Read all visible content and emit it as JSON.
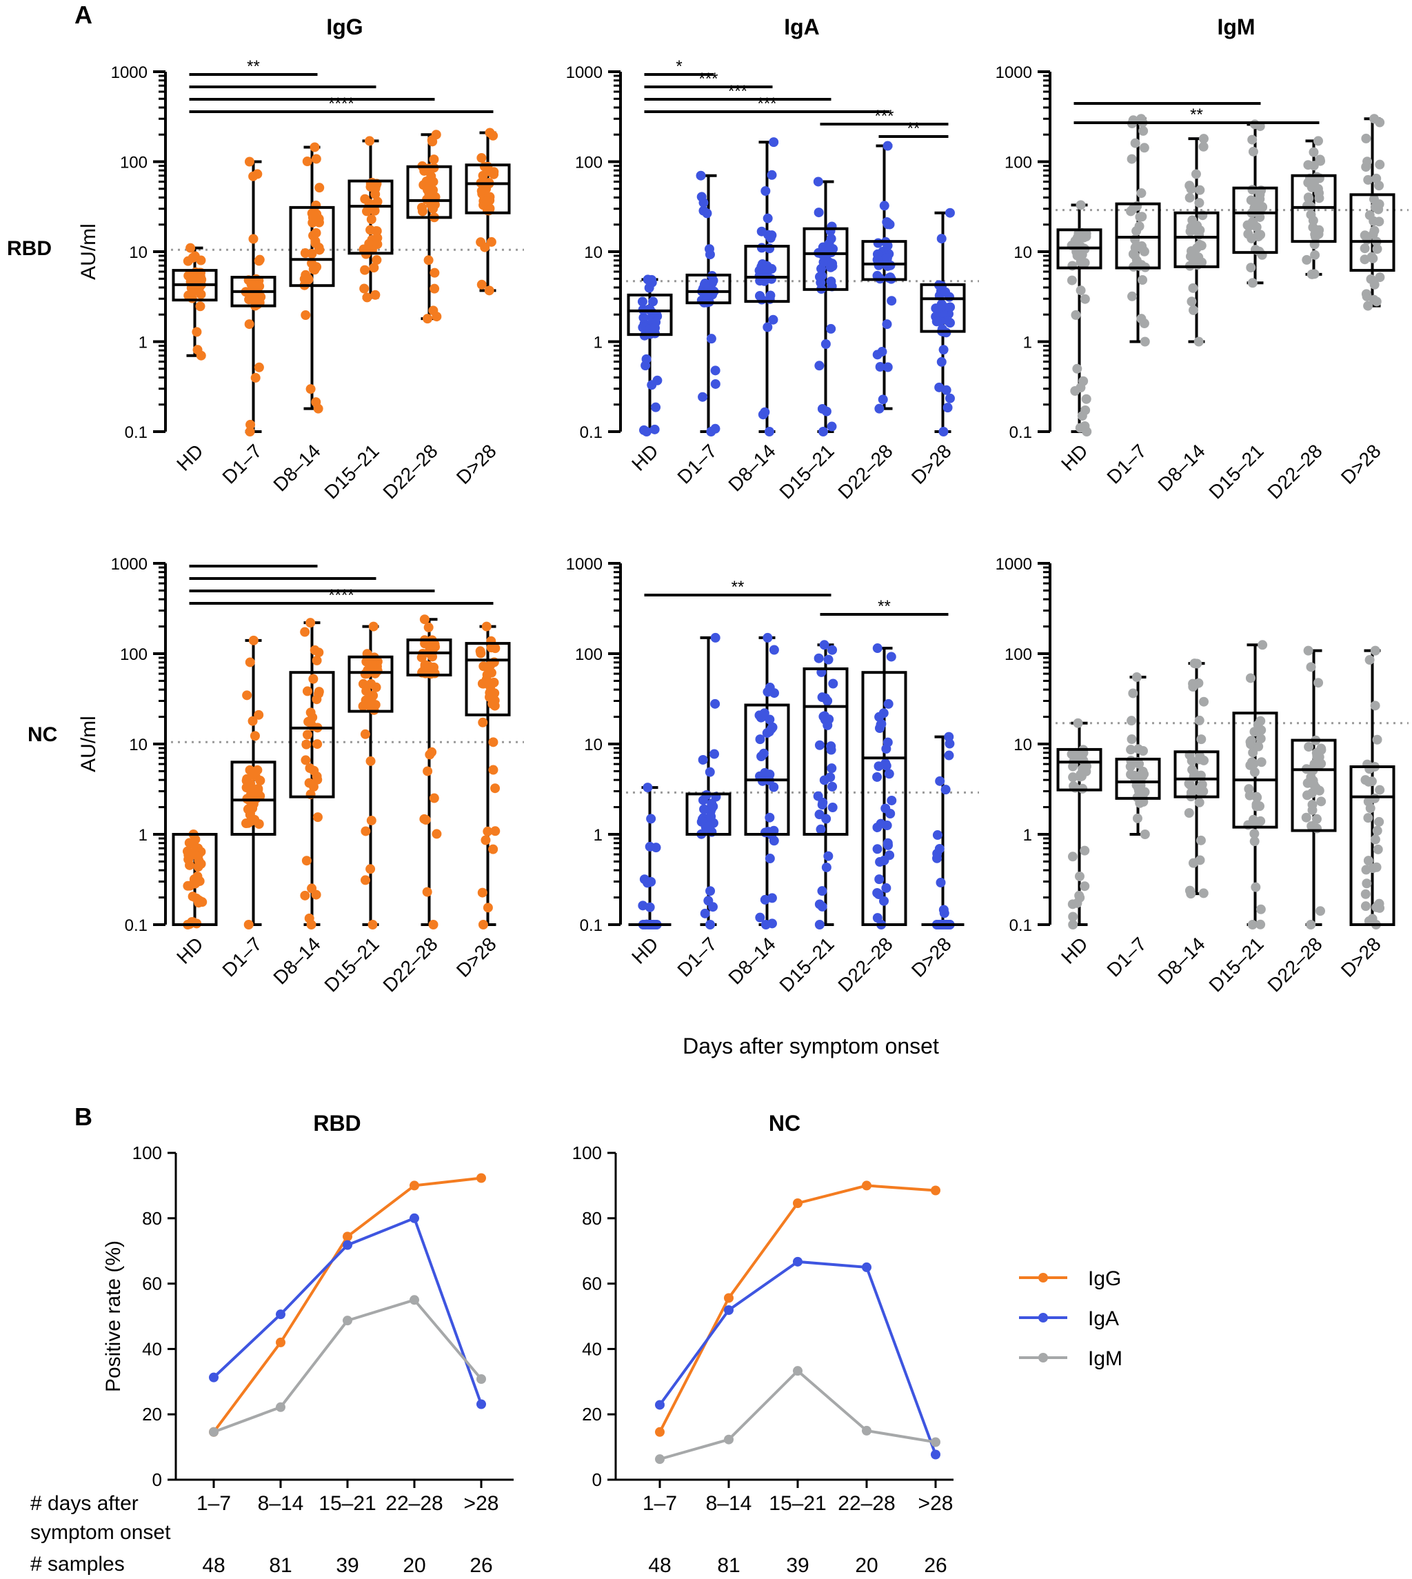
{
  "figure": {
    "panel_a": "A",
    "panel_b": "B",
    "row_labels": [
      "RBD",
      "NC"
    ],
    "shared_xlabel": "Days after symptom onset",
    "colors": {
      "IgG": "#F47C20",
      "IgA": "#3E55E0",
      "IgM": "#A6A8A9"
    }
  },
  "chart_data": [
    {
      "type": "box",
      "scale": "log",
      "title": "IgG",
      "row": "RBD",
      "ylabel": "AU/ml",
      "ylim": [
        0.1,
        1000
      ],
      "yticks": [
        "0.1",
        "1",
        "10",
        "100",
        "1000"
      ],
      "categories": [
        "HD",
        "D1–7",
        "D8–14",
        "D15–21",
        "D22–28",
        "D>28"
      ],
      "cutoff": 10.5,
      "color_key": "IgG",
      "boxes": [
        {
          "min": 0.7,
          "q1": 2.9,
          "med": 4.3,
          "q3": 6.2,
          "max": 11
        },
        {
          "min": 0.1,
          "q1": 2.5,
          "med": 3.6,
          "q3": 5.2,
          "max": 100
        },
        {
          "min": 0.18,
          "q1": 4.2,
          "med": 8.2,
          "q3": 31,
          "max": 145
        },
        {
          "min": 3.1,
          "q1": 9.6,
          "med": 32,
          "q3": 61,
          "max": 170
        },
        {
          "min": 1.8,
          "q1": 24,
          "med": 37,
          "q3": 88,
          "max": 200
        },
        {
          "min": 3.7,
          "q1": 27,
          "med": 57,
          "q3": 92,
          "max": 210
        }
      ],
      "sig": [
        {
          "from": 0,
          "to": 2,
          "label": "**"
        },
        {
          "from": 0,
          "to": 3,
          "label": ""
        },
        {
          "from": 0,
          "to": 4,
          "label": ""
        },
        {
          "from": 0,
          "to": 5,
          "label": "****"
        }
      ]
    },
    {
      "type": "box",
      "scale": "log",
      "title": "IgA",
      "row": "RBD",
      "ylabel": "",
      "ylim": [
        0.1,
        1000
      ],
      "yticks": [
        "0.1",
        "1",
        "10",
        "100",
        "1000"
      ],
      "categories": [
        "HD",
        "D1–7",
        "D8–14",
        "D15–21",
        "D22–28",
        "D>28"
      ],
      "cutoff": 4.7,
      "color_key": "IgA",
      "boxes": [
        {
          "min": 0.1,
          "q1": 1.2,
          "med": 2.2,
          "q3": 3.3,
          "max": 4.9
        },
        {
          "min": 0.1,
          "q1": 2.7,
          "med": 3.6,
          "q3": 5.5,
          "max": 70
        },
        {
          "min": 0.1,
          "q1": 2.8,
          "med": 5.2,
          "q3": 11.5,
          "max": 165
        },
        {
          "min": 0.1,
          "q1": 3.8,
          "med": 9.5,
          "q3": 18,
          "max": 60
        },
        {
          "min": 0.18,
          "q1": 4.9,
          "med": 7.3,
          "q3": 13,
          "max": 150
        },
        {
          "min": 0.1,
          "q1": 1.3,
          "med": 3,
          "q3": 4.3,
          "max": 27
        }
      ],
      "sig": [
        {
          "from": 0,
          "to": 1,
          "label": "*"
        },
        {
          "from": 0,
          "to": 2,
          "label": "***"
        },
        {
          "from": 0,
          "to": 3,
          "label": "***"
        },
        {
          "from": 0,
          "to": 4,
          "label": "***"
        },
        {
          "from": 3,
          "to": 5,
          "label": "***"
        },
        {
          "from": 4,
          "to": 5,
          "label": "**"
        }
      ]
    },
    {
      "type": "box",
      "scale": "log",
      "title": "IgM",
      "row": "RBD",
      "ylabel": "",
      "ylim": [
        0.1,
        1000
      ],
      "yticks": [
        "0.1",
        "1",
        "10",
        "100",
        "1000"
      ],
      "categories": [
        "HD",
        "D1–7",
        "D8–14",
        "D15–21",
        "D22–28",
        "D>28"
      ],
      "cutoff": 29,
      "color_key": "IgM",
      "boxes": [
        {
          "min": 0.1,
          "q1": 6.6,
          "med": 11,
          "q3": 17.5,
          "max": 33
        },
        {
          "min": 1,
          "q1": 6.6,
          "med": 14.5,
          "q3": 34,
          "max": 300
        },
        {
          "min": 1,
          "q1": 6.8,
          "med": 14.5,
          "q3": 27,
          "max": 180
        },
        {
          "min": 4.5,
          "q1": 9.8,
          "med": 27,
          "q3": 51,
          "max": 260
        },
        {
          "min": 5.6,
          "q1": 13,
          "med": 31,
          "q3": 70,
          "max": 170
        },
        {
          "min": 2.5,
          "q1": 6.2,
          "med": 13,
          "q3": 43,
          "max": 300
        }
      ],
      "sig": [
        {
          "from": 0,
          "to": 3,
          "label": ""
        },
        {
          "from": 0,
          "to": 4,
          "label": "**"
        }
      ]
    },
    {
      "type": "box",
      "scale": "log",
      "title": "",
      "row": "NC",
      "ylabel": "AU/ml",
      "ylim": [
        0.1,
        1000
      ],
      "yticks": [
        "0.1",
        "1",
        "10",
        "100",
        "1000"
      ],
      "categories": [
        "HD",
        "D1–7",
        "D8–14",
        "D15–21",
        "D22–28",
        "D>28"
      ],
      "cutoff": 10.5,
      "color_key": "IgG",
      "boxes": [
        {
          "min": 0.1,
          "q1": 0.1,
          "med": 0.1,
          "q3": 1,
          "max": 1
        },
        {
          "min": 0.1,
          "q1": 1,
          "med": 2.4,
          "q3": 6.3,
          "max": 140
        },
        {
          "min": 0.1,
          "q1": 2.6,
          "med": 15,
          "q3": 62,
          "max": 220
        },
        {
          "min": 0.1,
          "q1": 23,
          "med": 62,
          "q3": 92,
          "max": 200
        },
        {
          "min": 0.1,
          "q1": 58,
          "med": 102,
          "q3": 142,
          "max": 240
        },
        {
          "min": 0.1,
          "q1": 21,
          "med": 85,
          "q3": 130,
          "max": 200
        }
      ],
      "sig": [
        {
          "from": 0,
          "to": 2,
          "label": ""
        },
        {
          "from": 0,
          "to": 3,
          "label": ""
        },
        {
          "from": 0,
          "to": 4,
          "label": ""
        },
        {
          "from": 0,
          "to": 5,
          "label": "****"
        }
      ]
    },
    {
      "type": "box",
      "scale": "log",
      "title": "",
      "row": "NC",
      "ylabel": "",
      "ylim": [
        0.1,
        1000
      ],
      "yticks": [
        "0.1",
        "1",
        "10",
        "100",
        "1000"
      ],
      "categories": [
        "HD",
        "D1–7",
        "D8–14",
        "D15–21",
        "D22–28",
        "D>28"
      ],
      "cutoff": 2.9,
      "color_key": "IgA",
      "boxes": [
        {
          "min": 0.1,
          "q1": 0.1,
          "med": 0.1,
          "q3": 0.1,
          "max": 3.3
        },
        {
          "min": 0.1,
          "q1": 1,
          "med": 1,
          "q3": 2.8,
          "max": 150
        },
        {
          "min": 0.1,
          "q1": 1,
          "med": 4,
          "q3": 27,
          "max": 150
        },
        {
          "min": 0.1,
          "q1": 1,
          "med": 26,
          "q3": 68,
          "max": 125
        },
        {
          "min": 0.1,
          "q1": 0.1,
          "med": 7,
          "q3": 62,
          "max": 115
        },
        {
          "min": 0.1,
          "q1": 0.1,
          "med": 0.1,
          "q3": 0.1,
          "max": 12
        }
      ],
      "sig": [
        {
          "from": 0,
          "to": 3,
          "label": "**"
        },
        {
          "from": 3,
          "to": 5,
          "label": "**"
        }
      ]
    },
    {
      "type": "box",
      "scale": "log",
      "title": "",
      "row": "NC",
      "ylabel": "",
      "ylim": [
        0.1,
        1000
      ],
      "yticks": [
        "0.1",
        "1",
        "10",
        "100",
        "1000"
      ],
      "categories": [
        "HD",
        "D1–7",
        "D8–14",
        "D15–21",
        "D22–28",
        "D>28"
      ],
      "cutoff": 17,
      "color_key": "IgM",
      "boxes": [
        {
          "min": 0.1,
          "q1": 3.1,
          "med": 6.3,
          "q3": 8.7,
          "max": 17
        },
        {
          "min": 1,
          "q1": 2.5,
          "med": 3.8,
          "q3": 6.8,
          "max": 55
        },
        {
          "min": 0.22,
          "q1": 2.6,
          "med": 4.1,
          "q3": 8.2,
          "max": 78
        },
        {
          "min": 0.1,
          "q1": 1.2,
          "med": 4,
          "q3": 22,
          "max": 125
        },
        {
          "min": 0.1,
          "q1": 1.1,
          "med": 5.2,
          "q3": 11,
          "max": 108
        },
        {
          "min": 0.1,
          "q1": 0.1,
          "med": 2.6,
          "q3": 5.6,
          "max": 108
        }
      ],
      "sig": []
    },
    {
      "type": "line",
      "title": "RBD",
      "ylabel": "Positive rate (%)",
      "ylim": [
        0,
        100
      ],
      "yticks": [
        "0",
        "20",
        "40",
        "60",
        "80",
        "100"
      ],
      "categories": [
        "1–7",
        "8–14",
        "15–21",
        "22–28",
        ">28"
      ],
      "xlabel": [
        "# days after",
        "symptom onset"
      ],
      "samples_label": "# samples",
      "samples": [
        "48",
        "81",
        "39",
        "20",
        "26"
      ],
      "series": [
        {
          "name": "IgG",
          "values": [
            14.6,
            42,
            74.4,
            90,
            92.3
          ]
        },
        {
          "name": "IgA",
          "values": [
            31.3,
            50.6,
            71.8,
            80,
            23.1
          ]
        },
        {
          "name": "IgM",
          "values": [
            14.6,
            22.2,
            48.7,
            55,
            30.8
          ]
        }
      ]
    },
    {
      "type": "line",
      "title": "NC",
      "ylabel": "",
      "ylim": [
        0,
        100
      ],
      "yticks": [
        "0",
        "20",
        "40",
        "60",
        "80",
        "100"
      ],
      "categories": [
        "1–7",
        "8–14",
        "15–21",
        "22–28",
        ">28"
      ],
      "samples": [
        "48",
        "81",
        "39",
        "20",
        "26"
      ],
      "legend": [
        "IgG",
        "IgA",
        "IgM"
      ],
      "series": [
        {
          "name": "IgG",
          "values": [
            14.6,
            55.6,
            84.6,
            90,
            88.5
          ]
        },
        {
          "name": "IgA",
          "values": [
            22.9,
            51.9,
            66.7,
            65,
            7.7
          ]
        },
        {
          "name": "IgM",
          "values": [
            6.3,
            12.3,
            33.3,
            15,
            11.5
          ]
        }
      ]
    }
  ]
}
